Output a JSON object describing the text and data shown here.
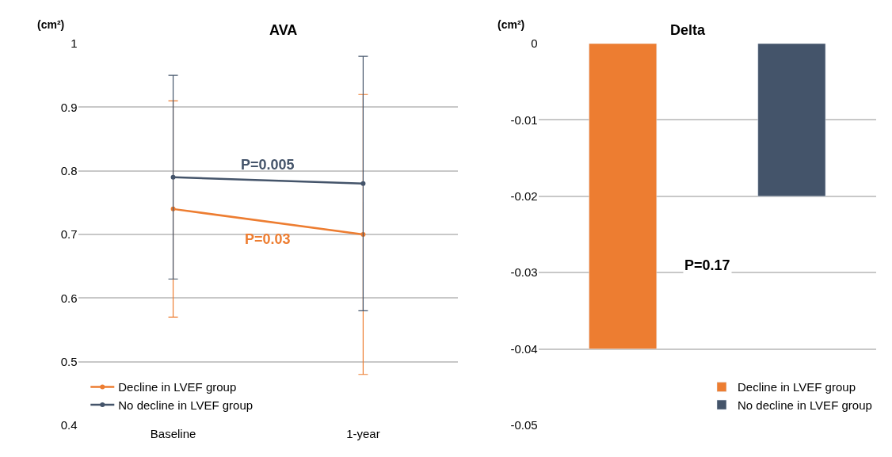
{
  "chart_data": [
    {
      "type": "line",
      "title": "AVA",
      "ylabel": "(cm²)",
      "categories": [
        "Baseline",
        "1-year"
      ],
      "series": [
        {
          "name": "Decline in LVEF group",
          "color": "#ed7d31",
          "values": [
            0.74,
            0.7
          ],
          "errors": [
            [
              0.57,
              0.91
            ],
            [
              0.48,
              0.92
            ]
          ]
        },
        {
          "name": "No decline in LVEF group",
          "color": "#44546a",
          "values": [
            0.79,
            0.78
          ],
          "errors": [
            [
              0.63,
              0.95
            ],
            [
              0.58,
              0.98
            ]
          ]
        }
      ],
      "annotations": [
        "P=0.03",
        "P=0.005"
      ],
      "ylim": [
        0.4,
        1
      ],
      "yticks": [
        0.4,
        0.5,
        0.6,
        0.7,
        0.8,
        0.9,
        1
      ],
      "grid": "y",
      "legend": "bottom left",
      "marker": "circle",
      "line_style": "solid"
    },
    {
      "type": "bar",
      "title": "Delta",
      "ylabel": "(cm²)",
      "categories": [
        null,
        null
      ],
      "series": [
        {
          "name": "Decline in LVEF group",
          "color": "#ed7d31",
          "values": [
            -0.04,
            null
          ]
        },
        {
          "name": "No decline in LVEF group",
          "color": "#44546a",
          "values": [
            null,
            -0.02
          ]
        }
      ],
      "annotations": [
        "P=0.17"
      ],
      "ylim": [
        -0.05,
        0
      ],
      "yticks": [
        -0.05,
        -0.04,
        -0.03,
        -0.02,
        -0.01,
        0
      ],
      "grid": "y",
      "legend": "bottom right",
      "tick_labels": "y"
    }
  ]
}
